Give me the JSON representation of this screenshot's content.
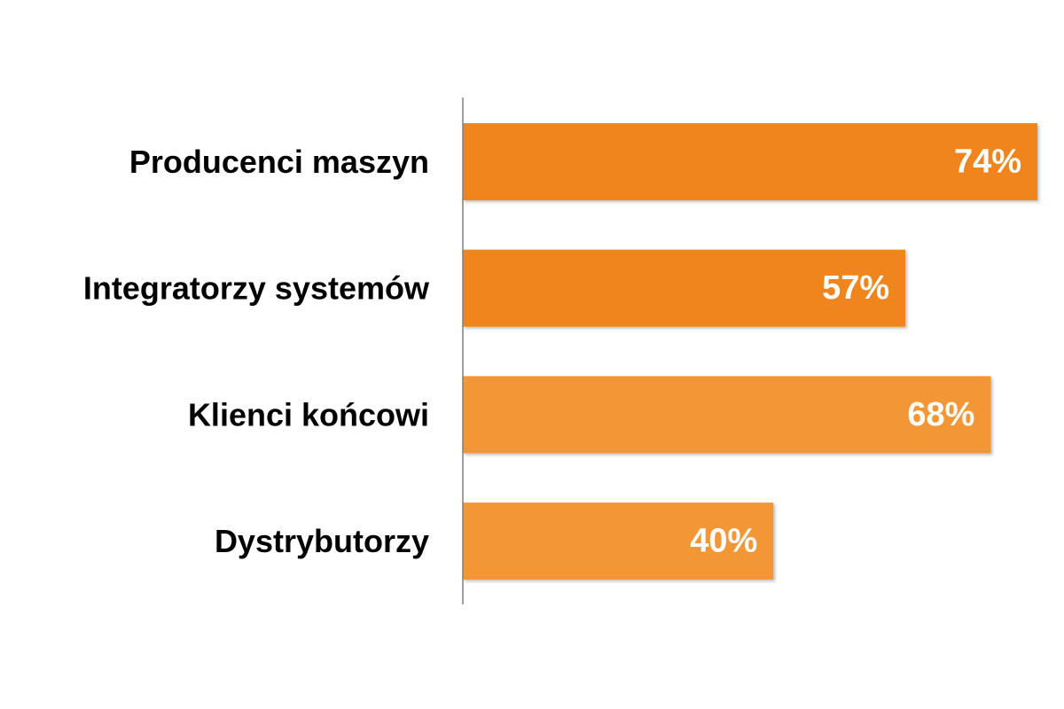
{
  "chart_data": {
    "type": "bar",
    "orientation": "horizontal",
    "title": "",
    "xlabel": "",
    "ylabel": "",
    "categories": [
      "Producenci maszyn",
      "Integratorzy systemów",
      "Klienci końcowi",
      "Dystrybutorzy"
    ],
    "values": [
      74,
      57,
      68,
      40
    ],
    "value_labels": [
      "74%",
      "57%",
      "68%",
      "40%"
    ],
    "unit": "%",
    "xlim": [
      0,
      74
    ],
    "grid": false,
    "legend": "none",
    "colors": [
      "#ef851b",
      "#ef851b",
      "#f39634",
      "#f39634"
    ],
    "value_label_color": "#ffffff",
    "axis_color": "#7f7f7f"
  }
}
